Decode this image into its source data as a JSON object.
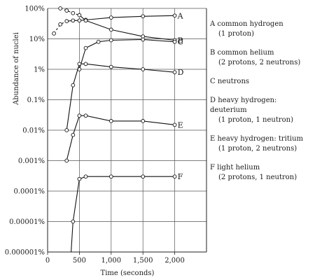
{
  "chart_data": {
    "type": "line",
    "title": "",
    "xlabel": "Time (seconds)",
    "ylabel": "Abundance of nuclei",
    "xlim": [
      0,
      2500
    ],
    "ylim": [
      1e-08,
      1
    ],
    "yscale": "log",
    "grid": true,
    "x_ticks": [
      0,
      500,
      1000,
      1500,
      2000
    ],
    "x_tick_labels": [
      "0",
      "500",
      "1,000",
      "1,500",
      "2,000"
    ],
    "y_ticks": [
      1,
      0.1,
      0.01,
      0.001,
      0.0001,
      1e-05,
      1e-06,
      1e-07,
      1e-08
    ],
    "y_tick_labels": [
      "100%",
      "10%",
      "1%",
      "0.1%",
      "0.01%",
      "0.001%",
      "0.0001%",
      "0.00001%",
      "0.000001%"
    ],
    "legend_placement": "right",
    "series": [
      {
        "letter": "A",
        "line1": "common hydrogen",
        "line2": "(1 proton)",
        "points": [
          [
            100,
            0.15
          ],
          [
            200,
            0.3
          ],
          [
            300,
            0.38
          ],
          [
            400,
            0.4
          ],
          [
            500,
            0.4
          ],
          [
            600,
            0.42
          ],
          [
            1000,
            0.5
          ],
          [
            1500,
            0.55
          ],
          [
            2000,
            0.58
          ]
        ],
        "dashed_until": 300
      },
      {
        "letter": "B",
        "line1": "common helium",
        "line2": "(2 protons, 2 neutrons)",
        "points": [
          [
            200,
            1.0
          ],
          [
            300,
            0.85
          ],
          [
            400,
            0.7
          ],
          [
            500,
            0.6
          ],
          [
            600,
            0.4
          ],
          [
            1000,
            0.2
          ],
          [
            1500,
            0.12
          ],
          [
            2000,
            0.09
          ]
        ],
        "dashed_until": 500
      },
      {
        "letter": "C",
        "line1": "neutrons",
        "line2": "",
        "points": [
          [
            500,
            0.01
          ],
          [
            600,
            0.05
          ],
          [
            800,
            0.08
          ],
          [
            1000,
            0.09
          ],
          [
            1500,
            0.095
          ],
          [
            2000,
            0.08
          ]
        ],
        "dashed_until": 0
      },
      {
        "letter": "D",
        "line1": "heavy hydrogen: deuterium",
        "line2": "(1 proton, 1 neutron)",
        "points": [
          [
            300,
            0.0001
          ],
          [
            400,
            0.003
          ],
          [
            500,
            0.015
          ],
          [
            600,
            0.015
          ],
          [
            1000,
            0.012
          ],
          [
            1500,
            0.01
          ],
          [
            2000,
            0.008
          ]
        ],
        "dashed_until": 0
      },
      {
        "letter": "E",
        "line1": "heavy hydrogen: tritium",
        "line2": "(1 proton, 2 neutrons)",
        "points": [
          [
            300,
            1e-05
          ],
          [
            400,
            7e-05
          ],
          [
            500,
            0.0003
          ],
          [
            600,
            0.0003
          ],
          [
            1000,
            0.0002
          ],
          [
            1500,
            0.0002
          ],
          [
            2000,
            0.00015
          ]
        ],
        "dashed_until": 0
      },
      {
        "letter": "F",
        "line1": "light helium",
        "line2": "(2 protons, 1 neutron)",
        "points": [
          [
            370,
            1e-08
          ],
          [
            400,
            1e-07
          ],
          [
            500,
            2.5e-06
          ],
          [
            600,
            3e-06
          ],
          [
            1000,
            3e-06
          ],
          [
            1500,
            3e-06
          ],
          [
            2000,
            3e-06
          ]
        ],
        "dashed_until": 0
      }
    ]
  }
}
